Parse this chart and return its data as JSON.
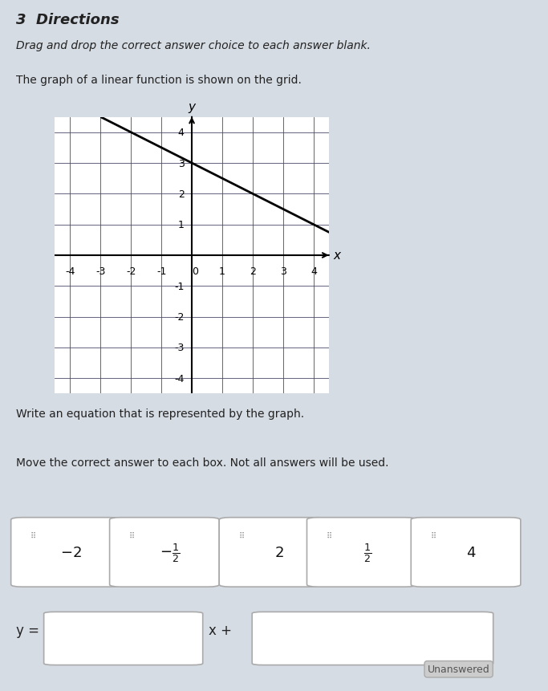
{
  "title_number": "3",
  "title_text": "Directions",
  "subtitle1": "Drag and drop the correct answer choice to each answer blank.",
  "subtitle2": "The graph of a linear function is shown on the grid.",
  "subtitle3": "Write an equation that is represented by the graph.",
  "subtitle4": "Move the correct answer to each box. Not all answers will be used.",
  "background_color": "#d6dce4",
  "grid_bg": "#ffffff",
  "axis_range": [
    -4.5,
    4.5
  ],
  "slope": -0.5,
  "intercept": 3,
  "answer_choices": [
    "-2",
    "-\\frac{1}{2}",
    "2",
    "\\frac{1}{2}",
    "4"
  ],
  "answer_box_label": "y =",
  "answer_mid_label": "x +",
  "line_color": "#000000",
  "grid_line_color": "#4a4a6a",
  "axis_color": "#000000",
  "tick_fontsize": 9,
  "label_fontsize": 11
}
